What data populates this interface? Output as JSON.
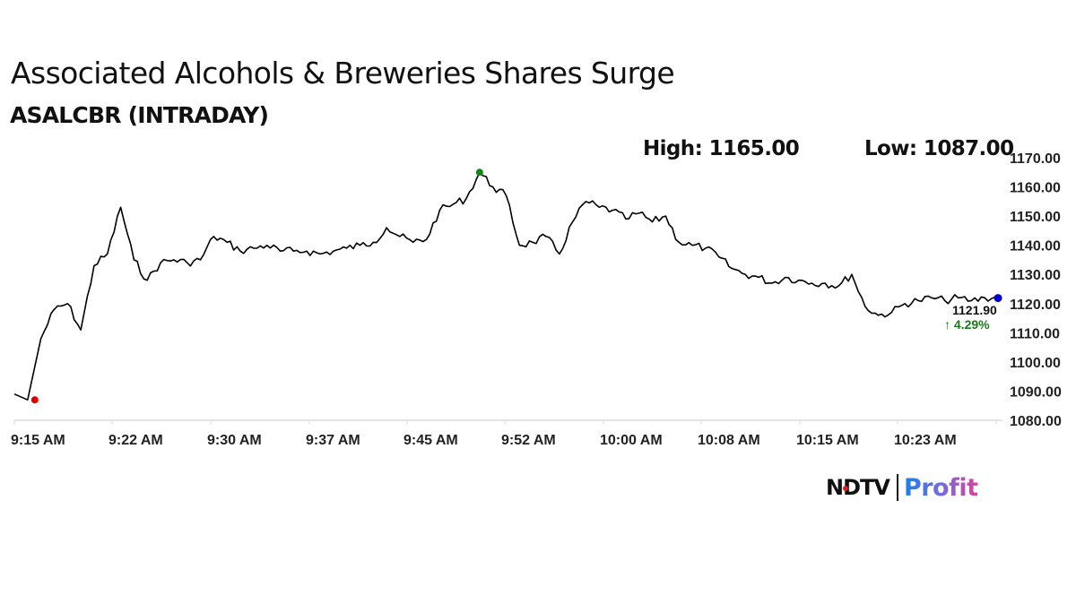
{
  "title": "Associated Alcohols & Breweries Shares Surge",
  "subtitle": "ASALCBR (INTRADAY)",
  "stats": {
    "high": "High: 1165.00",
    "low": "Low: 1087.00"
  },
  "last": {
    "price": "1121.90",
    "change": "↑ 4.29%"
  },
  "brand": {
    "ndtv": "NDTV",
    "profit": "Profit"
  },
  "colors": {
    "line": "#000000",
    "low_marker": "#e00000",
    "high_marker": "#118811",
    "last_marker": "#0000cc",
    "change_up": "#1a7a1a"
  },
  "chart_data": {
    "type": "line",
    "title": "Associated Alcohols & Breweries Shares Surge",
    "subtitle": "ASALCBR (INTRADAY)",
    "xlabel": "",
    "ylabel": "",
    "x_ticks": [
      "9:15 AM",
      "9:22 AM",
      "9:30 AM",
      "9:37 AM",
      "9:45 AM",
      "9:52 AM",
      "10:00 AM",
      "10:08 AM",
      "10:15 AM",
      "10:23 AM"
    ],
    "y_ticks": [
      "1080.00",
      "1090.00",
      "1100.00",
      "1110.00",
      "1120.00",
      "1130.00",
      "1140.00",
      "1150.00",
      "1160.00",
      "1170.00"
    ],
    "ylim": [
      1080,
      1170
    ],
    "grid": false,
    "legend": "none",
    "annotations": {
      "high": 1165.0,
      "low": 1087.0,
      "last": 1121.9,
      "change_pct": 4.29
    },
    "series": [
      {
        "name": "ASALCBR",
        "x": [
          "9:15",
          "9:16",
          "9:17",
          "9:18",
          "9:19",
          "9:20",
          "9:21",
          "9:22",
          "9:23",
          "9:24",
          "9:25",
          "9:26",
          "9:27",
          "9:28",
          "9:29",
          "9:30",
          "9:31",
          "9:32",
          "9:33",
          "9:34",
          "9:35",
          "9:36",
          "9:37",
          "9:38",
          "9:39",
          "9:40",
          "9:41",
          "9:42",
          "9:43",
          "9:44",
          "9:45",
          "9:46",
          "9:47",
          "9:48",
          "9:49",
          "9:50",
          "9:51",
          "9:52",
          "9:53",
          "9:54",
          "9:55",
          "9:56",
          "9:57",
          "9:58",
          "9:59",
          "10:00",
          "10:01",
          "10:02",
          "10:03",
          "10:04",
          "10:05",
          "10:06",
          "10:07",
          "10:08",
          "10:09",
          "10:10",
          "10:11",
          "10:12",
          "10:13",
          "10:14",
          "10:15",
          "10:16",
          "10:17",
          "10:18",
          "10:19",
          "10:20",
          "10:21",
          "10:22",
          "10:23",
          "10:24",
          "10:25",
          "10:26",
          "10:27",
          "10:28",
          "10:29"
        ],
        "values": [
          1089,
          1087,
          1108,
          1118,
          1120,
          1111,
          1133,
          1137,
          1153,
          1135,
          1128,
          1134,
          1135,
          1134,
          1135,
          1143,
          1141,
          1138,
          1139,
          1140,
          1138,
          1138,
          1138,
          1137,
          1138,
          1139,
          1140,
          1141,
          1146,
          1143,
          1141,
          1142,
          1152,
          1154,
          1156,
          1165,
          1160,
          1157,
          1140,
          1141,
          1143,
          1137,
          1148,
          1155,
          1153,
          1152,
          1149,
          1151,
          1148,
          1150,
          1141,
          1140,
          1139,
          1136,
          1132,
          1130,
          1129,
          1127,
          1129,
          1128,
          1127,
          1127,
          1126,
          1130,
          1119,
          1116,
          1117,
          1120,
          1121,
          1122,
          1121,
          1122,
          1121,
          1122,
          1121.9
        ]
      }
    ]
  }
}
